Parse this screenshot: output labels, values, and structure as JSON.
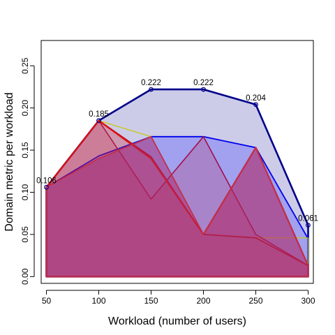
{
  "chart_data": {
    "type": "area",
    "xlabel": "Workload (number of users)",
    "ylabel": "Domain metric per workload",
    "x_ticks": [
      "50",
      "100",
      "150",
      "200",
      "250",
      "300"
    ],
    "y_ticks": [
      "0.00",
      "0.05",
      "0.10",
      "0.15",
      "0.20",
      "0.25"
    ],
    "xlim": [
      45,
      305
    ],
    "ylim": [
      -0.008,
      0.28
    ],
    "x": [
      50,
      100,
      150,
      200,
      250,
      300
    ],
    "series": [
      {
        "role": "envelope",
        "color": "#00008b",
        "fill": "rgba(0,0,139,0.2)",
        "stroke_width": 2.6,
        "markers": true,
        "values": [
          0.106,
          0.185,
          0.222,
          0.222,
          0.204,
          0.061
        ],
        "end_value": 0.045
      },
      {
        "role": "polygon",
        "color": "#0000ee",
        "fill": "rgba(80,80,255,0.35)",
        "stroke_width": 1.8,
        "values": [
          0.106,
          0.143,
          0.166,
          0.166,
          0.153,
          0.045
        ]
      },
      {
        "role": "polygon",
        "color": "#c8c800",
        "fill": "rgba(240,240,0,0)",
        "stroke_width": 1.2,
        "values": [
          0.106,
          0.185,
          0.166,
          0.05,
          0.046,
          0.046
        ]
      },
      {
        "role": "polygon",
        "color": "#a0104a",
        "fill": "rgba(200,0,40,0.18)",
        "stroke_width": 1.6,
        "values": [
          0.106,
          0.185,
          0.092,
          0.166,
          0.05,
          0.013
        ]
      },
      {
        "role": "polygon",
        "color": "#b01020",
        "fill": "rgba(210,40,60,0.15)",
        "stroke_width": 1.8,
        "values": [
          0.106,
          0.185,
          0.142,
          0.05,
          0.046,
          0.013
        ]
      },
      {
        "role": "polygon",
        "color": "#dd1010",
        "fill": "rgba(210,40,60,0.2)",
        "stroke_width": 2.2,
        "values": [
          0.106,
          0.185,
          0.14,
          0.05,
          0.153,
          0.013
        ]
      },
      {
        "role": "polygon",
        "color": "#c0304a",
        "fill": "rgba(170,40,110,0.5)",
        "stroke_width": 1.8,
        "values": [
          0.106,
          0.14,
          0.166,
          0.05,
          0.153,
          0.013
        ]
      }
    ],
    "data_labels": [
      {
        "x": 50,
        "y": 0.106,
        "text": "0.106"
      },
      {
        "x": 100,
        "y": 0.185,
        "text": "0.185"
      },
      {
        "x": 150,
        "y": 0.222,
        "text": "0.222"
      },
      {
        "x": 200,
        "y": 0.222,
        "text": "0.222"
      },
      {
        "x": 250,
        "y": 0.204,
        "text": "0.204"
      },
      {
        "x": 300,
        "y": 0.061,
        "text": "0.061"
      }
    ],
    "grid": false,
    "legend": false
  }
}
